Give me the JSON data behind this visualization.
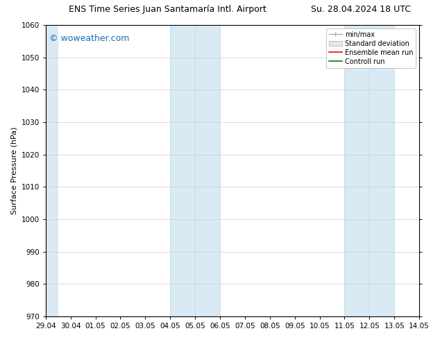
{
  "title_left": "ENS Time Series Juan Santamaría Intl. Airport",
  "title_right": "Su. 28.04.2024 18 UTC",
  "ylabel": "Surface Pressure (hPa)",
  "ylim": [
    970,
    1060
  ],
  "yticks": [
    970,
    980,
    990,
    1000,
    1010,
    1020,
    1030,
    1040,
    1050,
    1060
  ],
  "xlabel_dates": [
    "29.04",
    "30.04",
    "01.05",
    "02.05",
    "03.05",
    "04.05",
    "05.05",
    "06.05",
    "07.05",
    "08.05",
    "09.05",
    "10.05",
    "11.05",
    "12.05",
    "13.05",
    "14.05"
  ],
  "watermark": "© woweather.com",
  "watermark_color": "#1a6db5",
  "shaded_bands": [
    {
      "xmin": 0.0,
      "xmax": 0.5,
      "color": "#daeaf5"
    },
    {
      "xmin": 5.0,
      "xmax": 7.0,
      "color": "#daeaf5"
    },
    {
      "xmin": 12.0,
      "xmax": 14.0,
      "color": "#daeaf5"
    }
  ],
  "band_dividers": [
    5.0,
    6.0,
    7.0,
    12.0,
    13.0,
    14.0
  ],
  "legend_labels": [
    "min/max",
    "Standard deviation",
    "Ensemble mean run",
    "Controll run"
  ],
  "legend_colors_line": [
    "#aaaaaa",
    "#cccccc",
    "#ff0000",
    "#008000"
  ],
  "bg_color": "#ffffff",
  "grid_color": "#cccccc",
  "tick_color": "#000000",
  "font_size_title": 9,
  "font_size_axis": 7.5,
  "font_size_legend": 7,
  "font_size_ylabel": 8
}
